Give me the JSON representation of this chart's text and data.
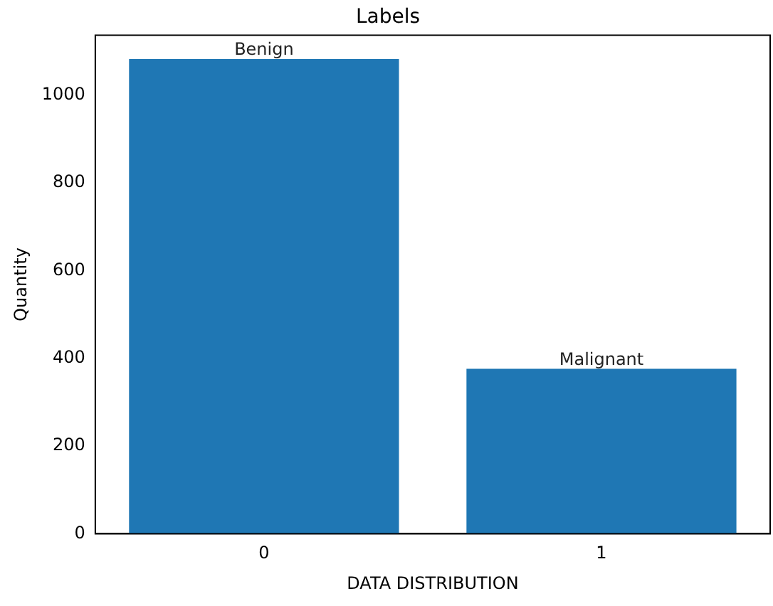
{
  "chart_data": {
    "type": "bar",
    "title": "Labels",
    "xlabel": "DATA DISTRIBUTION",
    "ylabel": "Quantity",
    "categories": [
      "0",
      "1"
    ],
    "values": [
      1082,
      376
    ],
    "color": "#1f77b4",
    "ylim": [
      0,
      1136
    ],
    "yticks": [
      0,
      200,
      400,
      600,
      800,
      1000
    ],
    "grid": false,
    "legend": false,
    "annotations": [
      {
        "text": "Benign",
        "x": "0",
        "y": 1082
      },
      {
        "text": "Malignant",
        "x": "1",
        "y": 376
      }
    ]
  }
}
